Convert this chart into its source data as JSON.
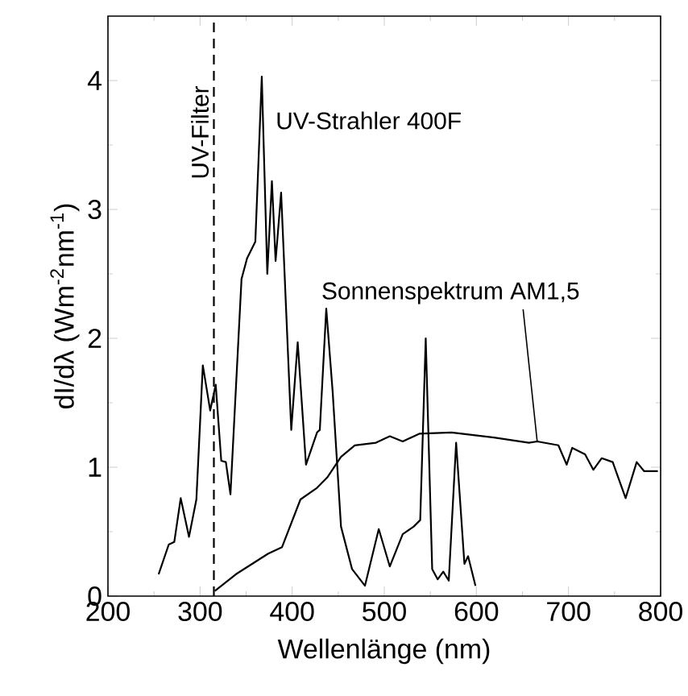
{
  "chart_data": {
    "type": "line",
    "xlabel": "Wellenlänge (nm)",
    "ylabel": "dI/dλ (Wm$^{-2}$nm$^{-1}$)",
    "xlim": [
      200,
      800
    ],
    "ylim": [
      0,
      4.5
    ],
    "xticks": [
      200,
      300,
      400,
      500,
      600,
      700,
      800
    ],
    "yticks": [
      0,
      1,
      2,
      3,
      4
    ],
    "grid": false,
    "legend": false,
    "marker": "none",
    "ref_lines": [
      {
        "axis": "x",
        "value": 315,
        "label": "UV-Filter",
        "line_style": "dashed",
        "color": "#000000"
      }
    ],
    "series": [
      {
        "name": "UV-Strahler 400F",
        "color": "#000000",
        "line_style": "solid",
        "x": [
          255,
          266,
          272,
          279,
          288,
          296,
          303,
          311,
          317,
          323,
          328,
          333,
          345,
          351,
          360,
          367,
          373,
          378,
          382,
          388,
          399,
          406,
          415,
          427,
          430,
          437,
          444,
          453,
          465,
          479,
          494,
          506,
          520,
          532,
          539,
          545,
          552,
          558,
          564,
          570,
          578,
          587,
          591,
          599
        ],
        "values": [
          0.17,
          0.4,
          0.42,
          0.76,
          0.46,
          0.75,
          1.79,
          1.44,
          1.64,
          1.05,
          1.04,
          0.79,
          2.46,
          2.62,
          2.75,
          4.03,
          2.5,
          3.22,
          2.6,
          3.13,
          1.29,
          1.97,
          1.02,
          1.27,
          1.29,
          2.23,
          1.58,
          0.54,
          0.21,
          0.08,
          0.52,
          0.23,
          0.48,
          0.54,
          0.59,
          2.0,
          0.21,
          0.13,
          0.19,
          0.12,
          1.19,
          0.25,
          0.31,
          0.08
        ]
      },
      {
        "name": "Sonnenspektrum AM1,5",
        "color": "#000000",
        "line_style": "solid",
        "x": [
          316,
          339,
          374,
          389,
          409,
          427,
          438,
          453,
          468,
          491,
          506,
          520,
          538,
          573,
          619,
          657,
          666,
          689,
          698,
          704,
          718,
          727,
          736,
          748,
          762,
          774,
          782,
          797
        ],
        "values": [
          0.04,
          0.17,
          0.33,
          0.38,
          0.75,
          0.84,
          0.92,
          1.08,
          1.17,
          1.19,
          1.24,
          1.2,
          1.26,
          1.27,
          1.23,
          1.19,
          1.2,
          1.17,
          1.02,
          1.15,
          1.1,
          0.98,
          1.07,
          1.04,
          0.76,
          1.04,
          0.97,
          0.97
        ]
      }
    ]
  }
}
